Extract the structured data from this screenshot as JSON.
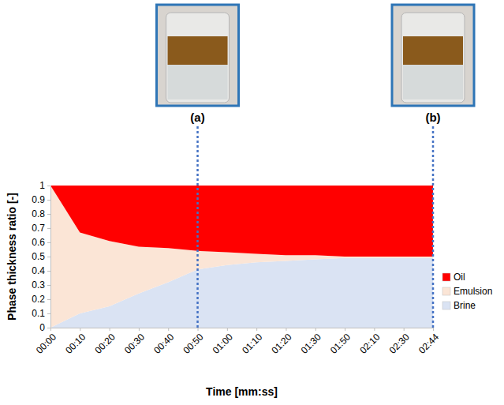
{
  "chart_data": {
    "type": "area",
    "stacked": true,
    "x_label": "Time [mm:ss]",
    "y_label": "Phase thickness ratio [-]",
    "categories": [
      "00:00",
      "00:10",
      "00:20",
      "00:30",
      "00:40",
      "00:50",
      "01:00",
      "01:10",
      "01:20",
      "01:30",
      "01:50",
      "02:10",
      "02:30",
      "02:44"
    ],
    "series": [
      {
        "name": "Oil",
        "color": "#ff0000",
        "values": [
          0,
          0.33,
          0.39,
          0.43,
          0.44,
          0.46,
          0.47,
          0.48,
          0.49,
          0.49,
          0.5,
          0.5,
          0.5,
          0.5
        ]
      },
      {
        "name": "Emulsion",
        "color": "#fbe5d6",
        "values": [
          1,
          0.57,
          0.46,
          0.33,
          0.24,
          0.13,
          0.09,
          0.06,
          0.04,
          0.03,
          0.01,
          0.01,
          0.01,
          0.01
        ]
      },
      {
        "name": "Brine",
        "color": "#dae3f3",
        "values": [
          0,
          0.1,
          0.15,
          0.24,
          0.32,
          0.41,
          0.44,
          0.46,
          0.47,
          0.48,
          0.49,
          0.49,
          0.49,
          0.49
        ]
      }
    ],
    "ylim": [
      0,
      1
    ],
    "yticks": [
      0,
      0.1,
      0.2,
      0.3,
      0.4,
      0.5,
      0.6,
      0.7,
      0.8,
      0.9,
      1
    ],
    "legend": "right",
    "annotations": [
      {
        "text": "(a)",
        "x": "00:50"
      },
      {
        "text": "(b)",
        "x": "02:44"
      }
    ]
  }
}
